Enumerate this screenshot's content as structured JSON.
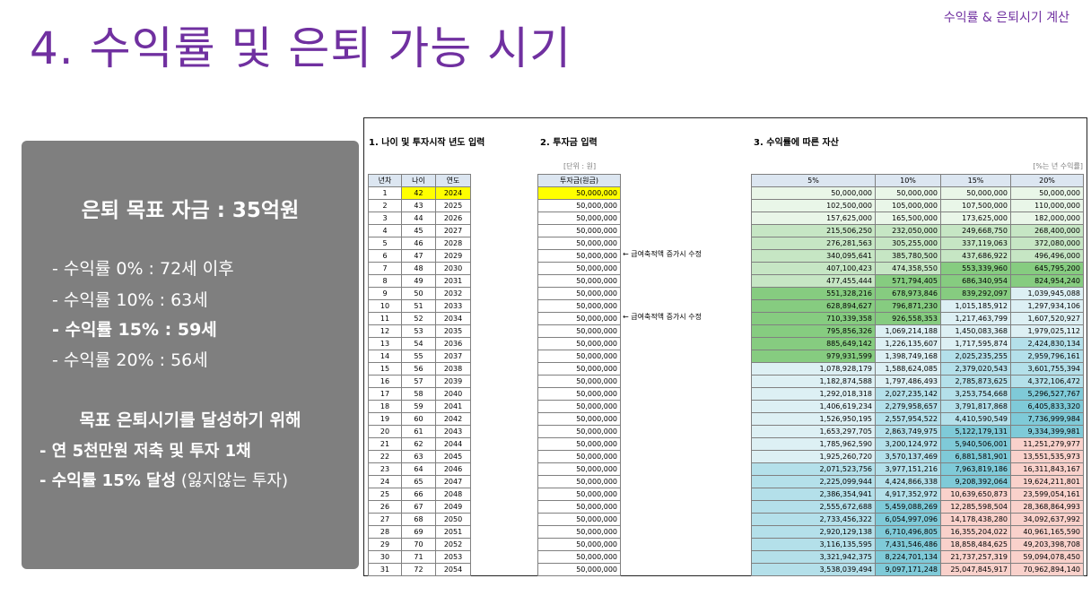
{
  "header": {
    "tag": "수익률 & 은퇴시기 계산",
    "title": "4. 수익률 및 은퇴 가능 시기"
  },
  "summary": {
    "title": "은퇴 목표 자금 : 35억원",
    "rates": [
      "- 수익률   0% : 72세 이후",
      "- 수익률 10% : 63세",
      "- 수익률 15% : 59세",
      "- 수익률 20% : 56세"
    ],
    "goal_title": "목표 은퇴시기를 달성하기 위해",
    "goal_line1": "- 연 5천만원 저축 및 투자 1채",
    "goal_line2_bold": "- 수익률 15% 달성",
    "goal_line2_normal": " (잃지않는 투자)"
  },
  "sheet": {
    "section1_title": "1. 나이 및 투자시작 년도 입력",
    "section2_title": "2. 투자금 입력",
    "section3_title": "3. 수익률에 따른 자산",
    "unit_note": "[단위 : 원]",
    "rate_note": "[%는 년 수익률]",
    "headers": {
      "year_no": "년차",
      "age": "나이",
      "year": "연도",
      "investment": "투자금(원금)",
      "rates": [
        "5%",
        "10%",
        "15%",
        "20%"
      ]
    },
    "side_notes": [
      "← 급여축적액 증가시 수정",
      "← 급여축적액 증가시 수정"
    ],
    "year_no": [
      "1",
      "2",
      "3",
      "4",
      "5",
      "6",
      "7",
      "8",
      "9",
      "10",
      "11",
      "12",
      "13",
      "14",
      "15",
      "16",
      "17",
      "18",
      "19",
      "20",
      "21",
      "22",
      "23",
      "24",
      "25",
      "26",
      "27",
      "28",
      "29",
      "30",
      "31"
    ],
    "ages": [
      "42",
      "43",
      "44",
      "45",
      "46",
      "47",
      "48",
      "49",
      "50",
      "51",
      "52",
      "53",
      "54",
      "55",
      "56",
      "57",
      "58",
      "59",
      "60",
      "61",
      "62",
      "63",
      "64",
      "65",
      "66",
      "67",
      "68",
      "69",
      "70",
      "71",
      "72"
    ],
    "years": [
      "2024",
      "2025",
      "2026",
      "2027",
      "2028",
      "2029",
      "2030",
      "2031",
      "2032",
      "2033",
      "2034",
      "2035",
      "2036",
      "2037",
      "2038",
      "2039",
      "2040",
      "2041",
      "2042",
      "2043",
      "2044",
      "2045",
      "2046",
      "2047",
      "2048",
      "2049",
      "2050",
      "2051",
      "2052",
      "2053",
      "2054"
    ],
    "investments": [
      "50,000,000",
      "50,000,000",
      "50,000,000",
      "50,000,000",
      "50,000,000",
      "50,000,000",
      "50,000,000",
      "50,000,000",
      "50,000,000",
      "50,000,000",
      "50,000,000",
      "50,000,000",
      "50,000,000",
      "50,000,000",
      "50,000,000",
      "50,000,000",
      "50,000,000",
      "50,000,000",
      "50,000,000",
      "50,000,000",
      "50,000,000",
      "50,000,000",
      "50,000,000",
      "50,000,000",
      "50,000,000",
      "50,000,000",
      "50,000,000",
      "50,000,000",
      "50,000,000",
      "50,000,000",
      "50,000,000"
    ],
    "returns": [
      [
        "50,000,000",
        "50,000,000",
        "50,000,000",
        "50,000,000"
      ],
      [
        "102,500,000",
        "105,000,000",
        "107,500,000",
        "110,000,000"
      ],
      [
        "157,625,000",
        "165,500,000",
        "173,625,000",
        "182,000,000"
      ],
      [
        "215,506,250",
        "232,050,000",
        "249,668,750",
        "268,400,000"
      ],
      [
        "276,281,563",
        "305,255,000",
        "337,119,063",
        "372,080,000"
      ],
      [
        "340,095,641",
        "385,780,500",
        "437,686,922",
        "496,496,000"
      ],
      [
        "407,100,423",
        "474,358,550",
        "553,339,960",
        "645,795,200"
      ],
      [
        "477,455,444",
        "571,794,405",
        "686,340,954",
        "824,954,240"
      ],
      [
        "551,328,216",
        "678,973,846",
        "839,292,097",
        "1,039,945,088"
      ],
      [
        "628,894,627",
        "796,871,230",
        "1,015,185,912",
        "1,297,934,106"
      ],
      [
        "710,339,358",
        "926,558,353",
        "1,217,463,799",
        "1,607,520,927"
      ],
      [
        "795,856,326",
        "1,069,214,188",
        "1,450,083,368",
        "1,979,025,112"
      ],
      [
        "885,649,142",
        "1,226,135,607",
        "1,717,595,874",
        "2,424,830,134"
      ],
      [
        "979,931,599",
        "1,398,749,168",
        "2,025,235,255",
        "2,959,796,161"
      ],
      [
        "1,078,928,179",
        "1,588,624,085",
        "2,379,020,543",
        "3,601,755,394"
      ],
      [
        "1,182,874,588",
        "1,797,486,493",
        "2,785,873,625",
        "4,372,106,472"
      ],
      [
        "1,292,018,318",
        "2,027,235,142",
        "3,253,754,668",
        "5,296,527,767"
      ],
      [
        "1,406,619,234",
        "2,279,958,657",
        "3,791,817,868",
        "6,405,833,320"
      ],
      [
        "1,526,950,195",
        "2,557,954,522",
        "4,410,590,549",
        "7,736,999,984"
      ],
      [
        "1,653,297,705",
        "2,863,749,975",
        "5,122,179,131",
        "9,334,399,981"
      ],
      [
        "1,785,962,590",
        "3,200,124,972",
        "5,940,506,001",
        "11,251,279,977"
      ],
      [
        "1,925,260,720",
        "3,570,137,469",
        "6,881,581,901",
        "13,551,535,973"
      ],
      [
        "2,071,523,756",
        "3,977,151,216",
        "7,963,819,186",
        "16,311,843,167"
      ],
      [
        "2,225,099,944",
        "4,424,866,338",
        "9,208,392,064",
        "19,624,211,801"
      ],
      [
        "2,386,354,941",
        "4,917,352,972",
        "10,639,650,873",
        "23,599,054,161"
      ],
      [
        "2,555,672,688",
        "5,459,088,269",
        "12,285,598,504",
        "28,368,864,993"
      ],
      [
        "2,733,456,322",
        "6,054,997,096",
        "14,178,438,280",
        "34,092,637,992"
      ],
      [
        "2,920,129,138",
        "6,710,496,805",
        "16,355,204,022",
        "40,961,165,590"
      ],
      [
        "3,116,135,595",
        "7,431,546,486",
        "18,858,484,625",
        "49,203,398,708"
      ],
      [
        "3,321,942,375",
        "8,224,701,134",
        "21,737,257,319",
        "59,094,078,450"
      ],
      [
        "3,538,039,494",
        "9,097,171,248",
        "25,047,845,917",
        "70,962,894,140"
      ]
    ],
    "colors": {
      "greenLight": "#e9f6e8",
      "greenMid": "#c6e6c4",
      "greenDark": "#86cc80",
      "blueLight": "#ddf0f4",
      "blueMid": "#b4e0ea",
      "blueDark": "#7fcad8",
      "pink": "#f9d1cb",
      "headerBlue": "#dce6f1",
      "highlight": "#ffff00"
    }
  }
}
